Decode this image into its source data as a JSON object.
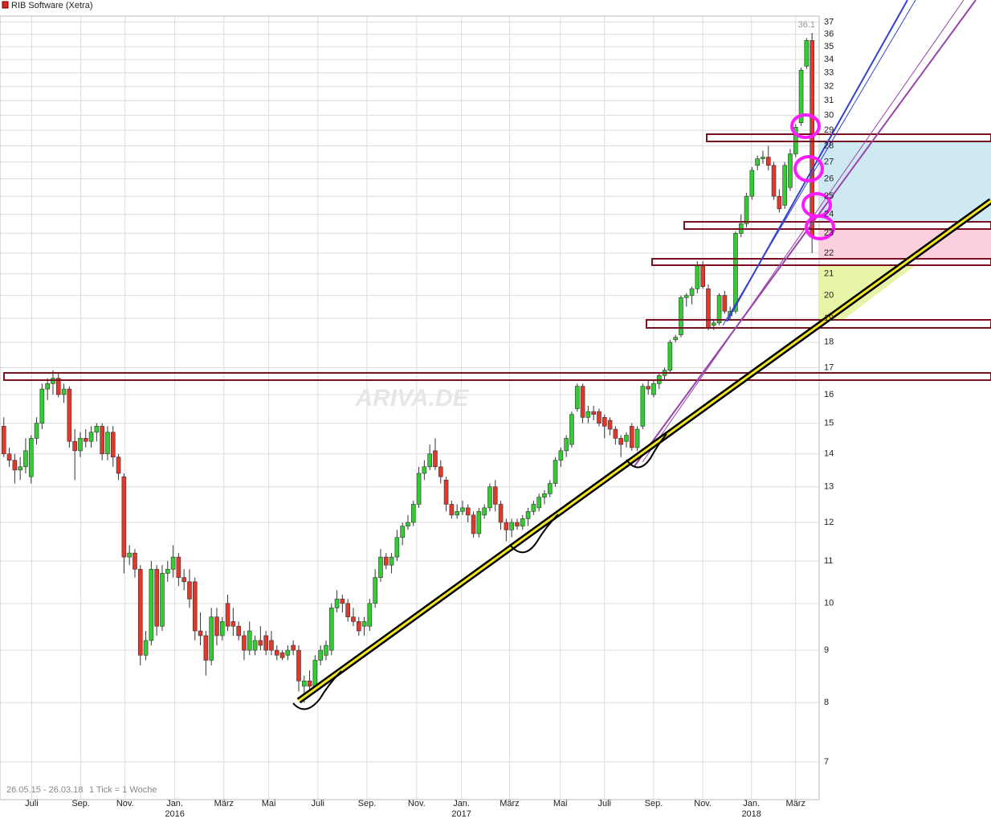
{
  "header": {
    "title": "RIB Software (Xetra)"
  },
  "chart_data": {
    "type": "candlestick",
    "log_scale": true,
    "grid": true,
    "colors": {
      "up": "#33cc33",
      "down": "#e0392c"
    },
    "xlim": [
      -0.7,
      149.3
    ],
    "ylim": [
      6.43,
      37.5
    ],
    "yticks": [
      7,
      8,
      9,
      10,
      11,
      12,
      13,
      14,
      15,
      16,
      17,
      18,
      19,
      20,
      21,
      22,
      23,
      24,
      25,
      26,
      27,
      28,
      29,
      30,
      31,
      32,
      33,
      34,
      35,
      36,
      37
    ],
    "xticks": [
      {
        "value": 5.1,
        "label": "Juli"
      },
      {
        "value": 14.1,
        "label": "Sep."
      },
      {
        "value": 22.2,
        "label": "Nov."
      },
      {
        "value": 31.3,
        "label": "Jan."
      },
      {
        "value": 40.3,
        "label": "März"
      },
      {
        "value": 48.5,
        "label": "Mai"
      },
      {
        "value": 57.5,
        "label": "Juli"
      },
      {
        "value": 66.5,
        "label": "Sep."
      },
      {
        "value": 75.6,
        "label": "Nov."
      },
      {
        "value": 83.8,
        "label": "Jan."
      },
      {
        "value": 92.6,
        "label": "März"
      },
      {
        "value": 101.9,
        "label": "Mai"
      },
      {
        "value": 110,
        "label": "Juli"
      },
      {
        "value": 119,
        "label": "Sep."
      },
      {
        "value": 128,
        "label": "Nov."
      },
      {
        "value": 136.9,
        "label": "Jan."
      },
      {
        "value": 145,
        "label": "März"
      }
    ],
    "year_ticks": [
      {
        "value": 31.3,
        "label": "2016"
      },
      {
        "value": 83.8,
        "label": "2017"
      },
      {
        "value": 136.9,
        "label": "2018"
      }
    ],
    "max_marker": {
      "value": 36.1,
      "label": "36.1"
    },
    "footer": {
      "range": "26.05.15 - 26.03.18",
      "tick": "1 Tick = 1 Woche"
    },
    "watermark": "ARIVA.DE",
    "ohlc": [
      [
        14.9,
        15.2,
        13.9,
        14.0
      ],
      [
        14.0,
        14.2,
        13.6,
        13.8
      ],
      [
        13.8,
        14.0,
        13.1,
        13.5
      ],
      [
        13.5,
        13.9,
        13.2,
        13.6
      ],
      [
        13.6,
        14.5,
        13.4,
        14.1
      ],
      [
        13.3,
        14.6,
        13.1,
        14.5
      ],
      [
        14.5,
        15.2,
        14.3,
        15.0
      ],
      [
        15.0,
        16.4,
        14.8,
        16.2
      ],
      [
        16.2,
        16.6,
        15.8,
        16.4
      ],
      [
        16.4,
        16.9,
        16.0,
        16.6
      ],
      [
        16.6,
        16.8,
        15.9,
        16.0
      ],
      [
        16.0,
        16.4,
        15.7,
        16.2
      ],
      [
        16.2,
        16.3,
        14.2,
        14.4
      ],
      [
        14.4,
        14.8,
        13.2,
        14.1
      ],
      [
        14.1,
        14.7,
        13.9,
        14.5
      ],
      [
        14.5,
        14.8,
        14.2,
        14.4
      ],
      [
        14.4,
        14.9,
        14.2,
        14.7
      ],
      [
        14.7,
        15.0,
        14.4,
        14.9
      ],
      [
        14.9,
        15.0,
        13.8,
        14.0
      ],
      [
        14.0,
        14.9,
        13.8,
        14.7
      ],
      [
        14.7,
        14.9,
        13.6,
        13.9
      ],
      [
        13.9,
        14.0,
        13.2,
        13.4
      ],
      [
        13.3,
        13.4,
        10.7,
        11.1
      ],
      [
        11.1,
        11.4,
        10.9,
        11.2
      ],
      [
        11.2,
        11.3,
        10.6,
        10.8
      ],
      [
        10.8,
        10.9,
        8.7,
        8.9
      ],
      [
        8.9,
        9.4,
        8.8,
        9.2
      ],
      [
        9.2,
        11.0,
        9.1,
        10.8
      ],
      [
        10.8,
        10.9,
        9.3,
        9.5
      ],
      [
        9.5,
        10.9,
        9.4,
        10.7
      ],
      [
        10.7,
        11.0,
        10.5,
        10.8
      ],
      [
        10.8,
        11.4,
        10.6,
        11.1
      ],
      [
        11.1,
        11.2,
        10.4,
        10.6
      ],
      [
        10.6,
        10.8,
        10.3,
        10.5
      ],
      [
        10.5,
        10.8,
        9.9,
        10.1
      ],
      [
        10.5,
        10.6,
        9.2,
        9.4
      ],
      [
        9.4,
        9.8,
        9.1,
        9.3
      ],
      [
        9.3,
        9.4,
        8.5,
        8.8
      ],
      [
        8.8,
        9.9,
        8.7,
        9.7
      ],
      [
        9.7,
        9.9,
        9.1,
        9.3
      ],
      [
        9.3,
        9.7,
        9.2,
        9.6
      ],
      [
        10.0,
        10.2,
        9.4,
        9.5
      ],
      [
        9.6,
        9.9,
        9.3,
        9.5
      ],
      [
        9.5,
        9.6,
        9.2,
        9.3
      ],
      [
        9.3,
        9.4,
        8.8,
        9.0
      ],
      [
        9.0,
        9.6,
        8.9,
        9.4
      ],
      [
        9.0,
        9.3,
        8.9,
        9.2
      ],
      [
        9.2,
        9.5,
        9.0,
        9.1
      ],
      [
        9.3,
        9.4,
        8.9,
        9.0
      ],
      [
        9.2,
        9.4,
        8.9,
        9.0
      ],
      [
        9.0,
        9.1,
        8.8,
        8.9
      ],
      [
        8.95,
        9.0,
        8.8,
        8.85
      ],
      [
        8.9,
        9.1,
        8.8,
        9.0
      ],
      [
        9.1,
        9.2,
        8.9,
        9.0
      ],
      [
        9.0,
        9.1,
        8.2,
        8.4
      ],
      [
        8.3,
        8.5,
        8.0,
        8.4
      ],
      [
        8.4,
        8.6,
        8.1,
        8.3
      ],
      [
        8.3,
        8.9,
        8.2,
        8.8
      ],
      [
        8.8,
        9.1,
        8.7,
        9.0
      ],
      [
        8.9,
        9.2,
        8.8,
        9.1
      ],
      [
        9.0,
        10.0,
        8.9,
        9.9
      ],
      [
        9.9,
        10.3,
        9.8,
        10.1
      ],
      [
        10.1,
        10.2,
        9.8,
        10.0
      ],
      [
        10.0,
        10.1,
        9.6,
        9.7
      ],
      [
        9.7,
        9.9,
        9.5,
        9.6
      ],
      [
        9.6,
        9.7,
        9.3,
        9.4
      ],
      [
        9.5,
        9.7,
        9.3,
        9.6
      ],
      [
        9.5,
        10.1,
        9.4,
        10.0
      ],
      [
        10.0,
        10.8,
        9.9,
        10.6
      ],
      [
        10.6,
        11.3,
        10.5,
        11.1
      ],
      [
        11.1,
        11.2,
        10.8,
        10.9
      ],
      [
        10.9,
        11.2,
        10.7,
        11.1
      ],
      [
        11.1,
        11.8,
        11.0,
        11.6
      ],
      [
        11.6,
        12.0,
        11.4,
        11.9
      ],
      [
        11.9,
        12.2,
        11.8,
        12.0
      ],
      [
        12.0,
        12.6,
        11.9,
        12.5
      ],
      [
        12.5,
        13.6,
        12.4,
        13.4
      ],
      [
        13.4,
        13.8,
        13.2,
        13.6
      ],
      [
        13.6,
        14.3,
        13.5,
        14.0
      ],
      [
        14.1,
        14.5,
        13.5,
        13.6
      ],
      [
        13.6,
        13.8,
        13.1,
        13.3
      ],
      [
        13.2,
        13.3,
        12.3,
        12.5
      ],
      [
        12.5,
        12.6,
        12.1,
        12.2
      ],
      [
        12.2,
        12.5,
        12.1,
        12.3
      ],
      [
        12.3,
        12.6,
        12.2,
        12.4
      ],
      [
        12.4,
        12.5,
        12.0,
        12.2
      ],
      [
        12.2,
        12.3,
        11.6,
        11.7
      ],
      [
        11.7,
        12.4,
        11.6,
        12.3
      ],
      [
        12.2,
        12.5,
        12.1,
        12.4
      ],
      [
        12.4,
        13.1,
        12.3,
        13.0
      ],
      [
        13.0,
        13.2,
        12.3,
        12.5
      ],
      [
        12.5,
        12.6,
        11.8,
        12.0
      ],
      [
        12.0,
        12.1,
        11.5,
        11.8
      ],
      [
        11.8,
        12.1,
        11.6,
        12.0
      ],
      [
        12.0,
        12.1,
        11.8,
        11.9
      ],
      [
        11.9,
        12.2,
        11.8,
        12.1
      ],
      [
        12.1,
        12.4,
        11.9,
        12.3
      ],
      [
        12.3,
        12.6,
        12.2,
        12.5
      ],
      [
        12.4,
        12.8,
        12.3,
        12.7
      ],
      [
        12.7,
        12.9,
        12.5,
        12.8
      ],
      [
        12.8,
        13.2,
        12.7,
        13.1
      ],
      [
        13.1,
        13.9,
        13.0,
        13.8
      ],
      [
        13.8,
        14.2,
        13.6,
        14.1
      ],
      [
        14.1,
        14.6,
        13.9,
        14.5
      ],
      [
        14.3,
        15.4,
        14.2,
        15.3
      ],
      [
        15.5,
        16.4,
        15.4,
        16.3
      ],
      [
        16.3,
        16.4,
        15.0,
        15.2
      ],
      [
        15.2,
        15.6,
        15.0,
        15.4
      ],
      [
        15.4,
        15.6,
        15.1,
        15.3
      ],
      [
        15.4,
        15.5,
        14.9,
        15.0
      ],
      [
        15.2,
        15.3,
        14.5,
        14.9
      ],
      [
        15.1,
        15.2,
        14.6,
        14.8
      ],
      [
        14.8,
        14.9,
        14.3,
        14.5
      ],
      [
        14.5,
        14.6,
        13.9,
        14.3
      ],
      [
        14.4,
        14.7,
        14.2,
        14.6
      ],
      [
        14.9,
        15.0,
        14.1,
        14.2
      ],
      [
        14.2,
        14.9,
        14.1,
        14.8
      ],
      [
        14.9,
        16.4,
        14.8,
        16.3
      ],
      [
        16.3,
        16.5,
        16.0,
        16.2
      ],
      [
        16.0,
        16.5,
        15.9,
        16.4
      ],
      [
        16.4,
        16.8,
        16.2,
        16.7
      ],
      [
        16.7,
        17.0,
        16.5,
        16.9
      ],
      [
        16.9,
        18.1,
        16.8,
        18.0
      ],
      [
        18.1,
        18.3,
        18.0,
        18.2
      ],
      [
        18.3,
        20.0,
        18.2,
        19.9
      ],
      [
        19.9,
        20.1,
        19.5,
        20.0
      ],
      [
        20.0,
        20.4,
        19.6,
        20.3
      ],
      [
        20.3,
        21.6,
        20.1,
        21.4
      ],
      [
        21.4,
        21.6,
        20.3,
        20.4
      ],
      [
        20.3,
        20.5,
        18.5,
        18.6
      ],
      [
        18.7,
        18.9,
        18.5,
        18.8
      ],
      [
        18.8,
        20.1,
        18.7,
        20.0
      ],
      [
        20.0,
        20.2,
        19.2,
        19.3
      ],
      [
        19.1,
        19.5,
        18.9,
        19.3
      ],
      [
        19.3,
        23.1,
        19.2,
        23.0
      ],
      [
        23.0,
        24.0,
        22.8,
        23.5
      ],
      [
        23.5,
        25.2,
        23.3,
        25.0
      ],
      [
        25.0,
        26.7,
        24.8,
        26.5
      ],
      [
        26.8,
        27.4,
        26.5,
        27.2
      ],
      [
        27.2,
        27.7,
        26.9,
        27.3
      ],
      [
        27.3,
        28.0,
        26.5,
        26.8
      ],
      [
        26.8,
        27.0,
        24.8,
        25.0
      ],
      [
        25.0,
        25.4,
        24.1,
        24.3
      ],
      [
        24.5,
        27.0,
        24.3,
        26.8
      ],
      [
        25.5,
        27.8,
        25.3,
        27.5
      ],
      [
        27.5,
        29.4,
        27.3,
        29.2
      ],
      [
        29.5,
        33.4,
        29.3,
        33.2
      ],
      [
        33.5,
        35.7,
        33.3,
        35.5
      ],
      [
        35.5,
        36.1,
        22.0,
        22.8
      ]
    ]
  }
}
